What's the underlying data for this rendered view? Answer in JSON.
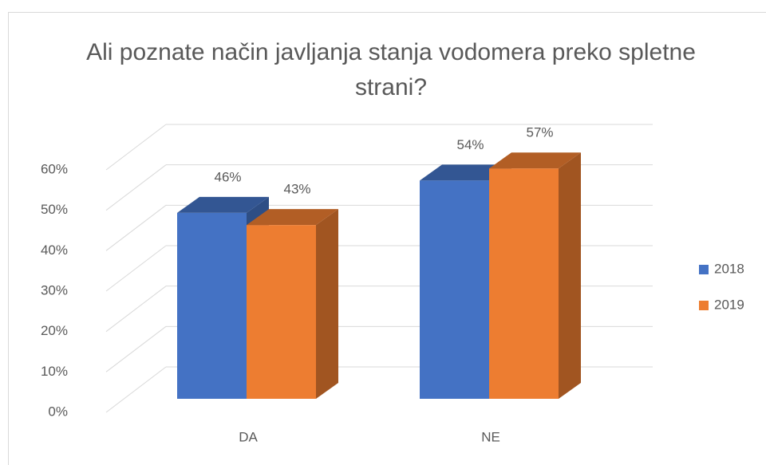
{
  "chart_data": {
    "type": "bar3d",
    "title": "Ali poznate način javljanja stanja vodomera preko spletne strani?",
    "categories": [
      "DA",
      "NE"
    ],
    "series": [
      {
        "name": "2018",
        "color": "#4472c4",
        "values": [
          46,
          54
        ],
        "value_labels": [
          "46%",
          "54%"
        ]
      },
      {
        "name": "2019",
        "color": "#ed7d31",
        "values": [
          43,
          57
        ],
        "value_labels": [
          "43%",
          "57%"
        ]
      }
    ],
    "ylim": [
      0,
      60
    ],
    "yticks": [
      {
        "value": 0,
        "label": "0%"
      },
      {
        "value": 10,
        "label": "10%"
      },
      {
        "value": 20,
        "label": "20%"
      },
      {
        "value": 30,
        "label": "30%"
      },
      {
        "value": 40,
        "label": "40%"
      },
      {
        "value": 50,
        "label": "50%"
      },
      {
        "value": 60,
        "label": "60%"
      }
    ],
    "grid": true,
    "legend": "right"
  }
}
